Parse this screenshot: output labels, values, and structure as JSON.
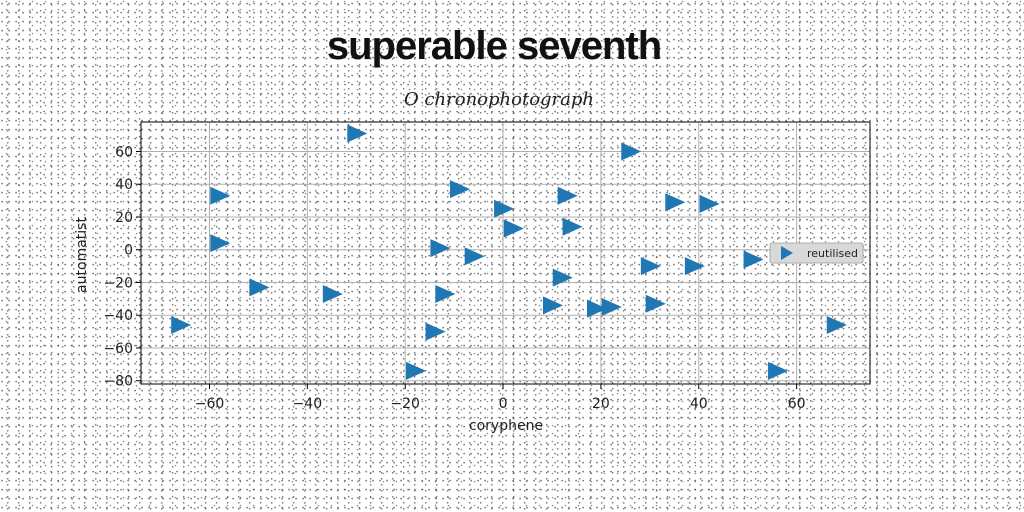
{
  "colors": {
    "marker": "#1f77b4",
    "grid": "#b0b0b0",
    "axis": "#000000",
    "legend_bg": "#d9d9d9"
  },
  "chart_data": {
    "type": "scatter",
    "title": "superable seventh",
    "subtitle": "O chronophotograph",
    "xlabel": "coryphene",
    "ylabel": "automatist",
    "xlim": [
      -74,
      75
    ],
    "ylim": [
      -82,
      78
    ],
    "xticks": [
      -60,
      -40,
      -20,
      0,
      20,
      40,
      60
    ],
    "yticks": [
      -80,
      -60,
      -40,
      -20,
      0,
      20,
      40,
      60
    ],
    "grid": true,
    "legend_position": "right",
    "marker": "triangle-right",
    "series": [
      {
        "name": "reutilised",
        "points": [
          [
            -30,
            71
          ],
          [
            26,
            60
          ],
          [
            -58,
            33
          ],
          [
            -9,
            37
          ],
          [
            13,
            33
          ],
          [
            35,
            29
          ],
          [
            42,
            28
          ],
          [
            0,
            25
          ],
          [
            2,
            13
          ],
          [
            14,
            14
          ],
          [
            -58,
            4
          ],
          [
            -13,
            1
          ],
          [
            -6,
            -4
          ],
          [
            51,
            -6
          ],
          [
            30,
            -10
          ],
          [
            39,
            -10
          ],
          [
            12,
            -17
          ],
          [
            -50,
            -23
          ],
          [
            -35,
            -27
          ],
          [
            -12,
            -27
          ],
          [
            10,
            -34
          ],
          [
            19,
            -36
          ],
          [
            22,
            -35
          ],
          [
            31,
            -33
          ],
          [
            -66,
            -46
          ],
          [
            68,
            -46
          ],
          [
            -14,
            -50
          ],
          [
            -18,
            -74
          ],
          [
            56,
            -74
          ]
        ]
      }
    ]
  }
}
